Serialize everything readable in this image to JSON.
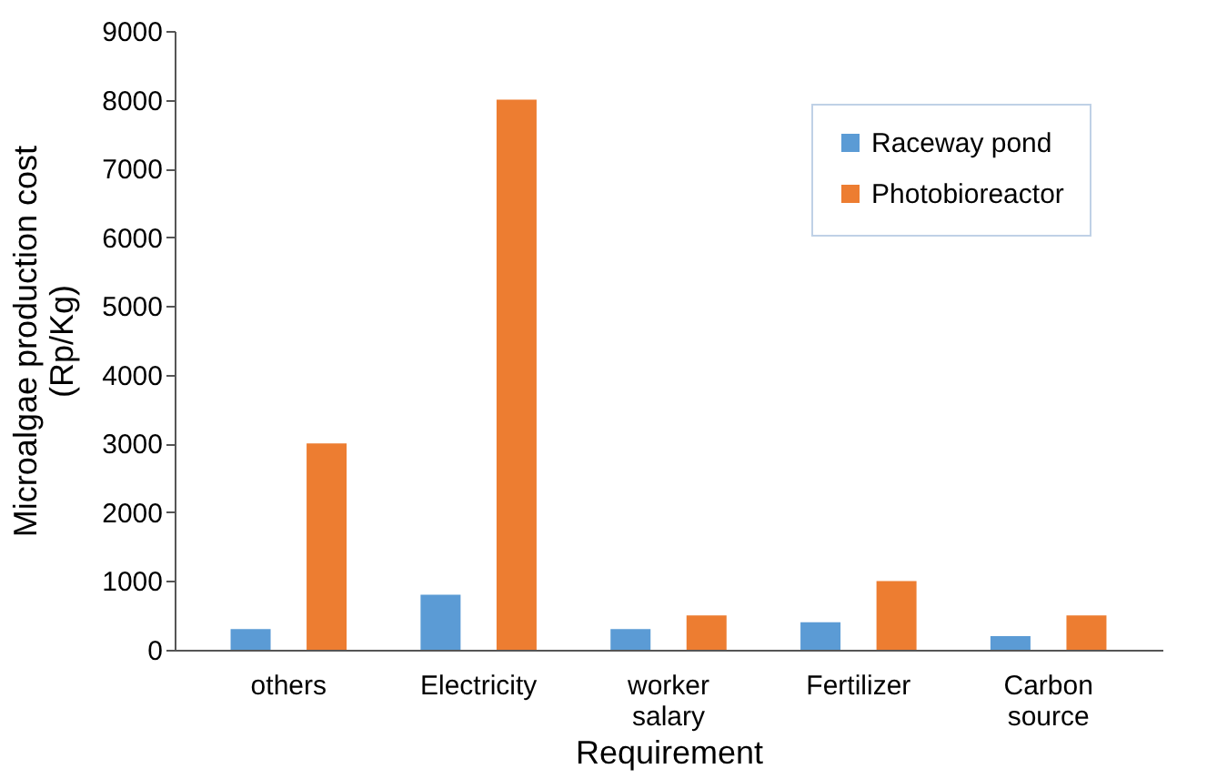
{
  "chart_data": {
    "type": "bar",
    "xlabel": "Requirement",
    "ylabel": "Microalgae production cost (Rp/Kg)",
    "categories": [
      "others",
      "Electricity",
      "worker salary",
      "Fertilizer",
      "Carbon source"
    ],
    "series": [
      {
        "name": "Raceway pond",
        "color": "#5b9bd5",
        "values": [
          300,
          800,
          300,
          400,
          200
        ]
      },
      {
        "name": "Photobioreactor",
        "color": "#ed7d31",
        "values": [
          3000,
          8000,
          500,
          1000,
          500
        ]
      }
    ],
    "ylim": [
      0,
      9000
    ],
    "yticks": [
      0,
      1000,
      2000,
      3000,
      4000,
      5000,
      6000,
      7000,
      8000,
      9000
    ],
    "grid": false,
    "legend": "top right"
  }
}
